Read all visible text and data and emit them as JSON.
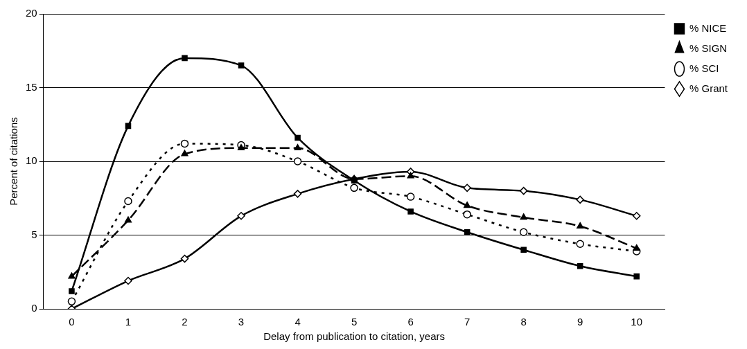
{
  "chart_data": {
    "type": "line",
    "xlabel": "Delay from publication to citation, years",
    "ylabel": "Percent of citations",
    "categories": [
      "0",
      "1",
      "2",
      "3",
      "4",
      "5",
      "6",
      "7",
      "8",
      "9",
      "10"
    ],
    "series": [
      {
        "name": "% NICE",
        "color": "#000000",
        "marker": "square",
        "line_style": "solid",
        "values": [
          1.2,
          12.4,
          17.0,
          16.5,
          11.6,
          8.7,
          6.6,
          5.2,
          4.0,
          2.9,
          2.2
        ]
      },
      {
        "name": "% SIGN",
        "color": "#000000",
        "marker": "triangle",
        "line_style": "dashed",
        "values": [
          2.2,
          6.0,
          10.5,
          10.9,
          10.9,
          8.8,
          9.0,
          7.0,
          6.2,
          5.6,
          4.1
        ]
      },
      {
        "name": "% SCI",
        "color": "#000000",
        "marker": "circle",
        "line_style": "dotted",
        "values": [
          0.5,
          7.3,
          11.2,
          11.1,
          10.0,
          8.2,
          7.6,
          6.4,
          5.2,
          4.4,
          3.9
        ]
      },
      {
        "name": "% Grant",
        "color": "#000000",
        "marker": "diamond",
        "line_style": "solid",
        "values": [
          0.0,
          1.9,
          3.4,
          6.3,
          7.8,
          8.8,
          9.3,
          8.2,
          8.0,
          7.4,
          6.3
        ]
      }
    ],
    "ylim": [
      0,
      20
    ],
    "yticks": [
      0,
      5,
      10,
      15,
      20
    ],
    "grid": "y",
    "legend": "top right"
  }
}
